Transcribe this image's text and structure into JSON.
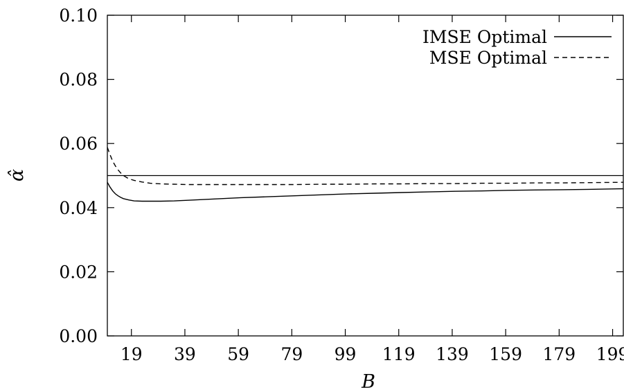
{
  "chart_data": {
    "type": "line",
    "xlabel": "B",
    "ylabel": "α̂",
    "xlim": [
      10,
      203
    ],
    "ylim": [
      0.0,
      0.1
    ],
    "x_ticks": [
      19,
      39,
      59,
      79,
      99,
      119,
      139,
      159,
      179,
      199
    ],
    "y_ticks": [
      "0.00",
      "0.02",
      "0.04",
      "0.06",
      "0.08",
      "0.10"
    ],
    "grid": false,
    "legend_position": "top-right",
    "reference_line": {
      "y": 0.05
    },
    "series": [
      {
        "name": "IMSE Optimal",
        "style": "solid",
        "x": [
          10,
          11,
          12,
          13,
          14,
          15,
          16,
          18,
          20,
          23,
          26,
          30,
          35,
          40,
          50,
          60,
          70,
          80,
          90,
          100,
          110,
          120,
          130,
          140,
          150,
          160,
          170,
          180,
          190,
          203
        ],
        "y": [
          0.0479,
          0.0464,
          0.0452,
          0.0443,
          0.0437,
          0.0432,
          0.0428,
          0.0424,
          0.0421,
          0.042,
          0.042,
          0.042,
          0.0421,
          0.0423,
          0.0427,
          0.0431,
          0.0434,
          0.0437,
          0.044,
          0.0443,
          0.0445,
          0.0447,
          0.0449,
          0.0451,
          0.0452,
          0.0454,
          0.0455,
          0.0456,
          0.0457,
          0.0459
        ]
      },
      {
        "name": "MSE Optimal",
        "style": "dashed",
        "x": [
          10,
          11,
          12,
          13,
          14,
          15,
          16,
          18,
          20,
          23,
          26,
          30,
          35,
          40,
          50,
          60,
          70,
          80,
          90,
          100,
          110,
          120,
          130,
          140,
          150,
          160,
          170,
          180,
          190,
          203
        ],
        "y": [
          0.0588,
          0.0565,
          0.0545,
          0.053,
          0.0518,
          0.0508,
          0.05,
          0.049,
          0.0485,
          0.048,
          0.0476,
          0.0474,
          0.0473,
          0.0472,
          0.0472,
          0.0472,
          0.0472,
          0.0472,
          0.0473,
          0.0473,
          0.0474,
          0.0474,
          0.0475,
          0.0475,
          0.0476,
          0.0476,
          0.0477,
          0.0477,
          0.0478,
          0.0479
        ]
      }
    ]
  }
}
